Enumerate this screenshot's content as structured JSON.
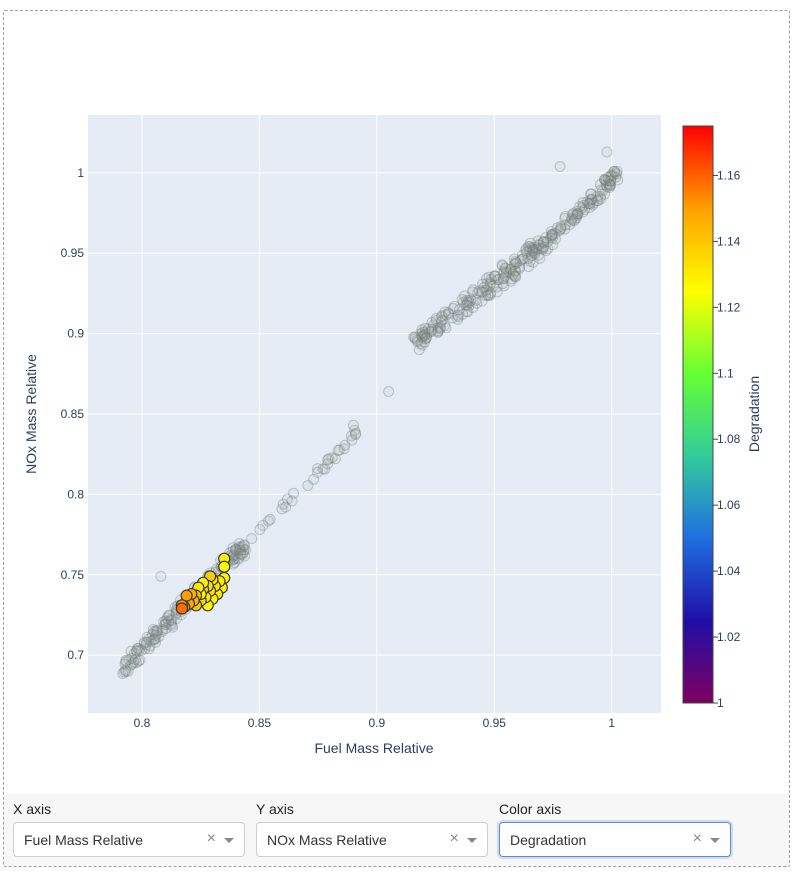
{
  "chart_data": {
    "type": "scatter",
    "xlabel": "Fuel Mass Relative",
    "ylabel": "NOx Mass Relative",
    "xlim": [
      0.777,
      1.021
    ],
    "ylim": [
      0.664,
      1.036
    ],
    "xticks": [
      0.8,
      0.85,
      0.9,
      0.95,
      1
    ],
    "xtick_labels": [
      "0.8",
      "0.85",
      "0.9",
      "0.95",
      "1"
    ],
    "yticks": [
      0.7,
      0.75,
      0.8,
      0.85,
      0.9,
      0.95,
      1
    ],
    "ytick_labels": [
      "0.7",
      "0.75",
      "0.8",
      "0.85",
      "0.9",
      "0.95",
      "1"
    ],
    "grid": true,
    "colorbar": {
      "title": "Degradation",
      "range": [
        1.0,
        1.175
      ],
      "ticks": [
        1,
        1.02,
        1.04,
        1.06,
        1.08,
        1.1,
        1.12,
        1.14,
        1.16
      ],
      "tick_labels": [
        "1",
        "1.02",
        "1.04",
        "1.06",
        "1.08",
        "1.1",
        "1.12",
        "1.14",
        "1.16"
      ],
      "colors": [
        "#7f0060",
        "#1e0fa6",
        "#1f6fe0",
        "#33cc99",
        "#66ff33",
        "#ffff00",
        "#ffa000",
        "#ff0000"
      ]
    },
    "background_series": {
      "name": "",
      "style": "faded grey",
      "segments": [
        {
          "x0": 0.792,
          "y0": 0.692,
          "x1": 0.845,
          "y1": 0.77,
          "n": 170,
          "spread": 0.005
        },
        {
          "x0": 0.845,
          "y0": 0.77,
          "x1": 0.892,
          "y1": 0.84,
          "n": 30,
          "spread": 0.003
        },
        {
          "x0": 0.917,
          "y0": 0.895,
          "x1": 0.975,
          "y1": 0.96,
          "n": 180,
          "spread": 0.006
        },
        {
          "x0": 0.975,
          "y0": 0.96,
          "x1": 1.003,
          "y1": 1.0,
          "n": 80,
          "spread": 0.004
        }
      ],
      "extra_points": [
        [
          0.905,
          0.864
        ],
        [
          0.89,
          0.843
        ],
        [
          0.891,
          0.838
        ],
        [
          0.808,
          0.749
        ],
        [
          0.998,
          1.013
        ],
        [
          0.978,
          1.004
        ]
      ]
    },
    "highlight_points": [
      {
        "x": 0.835,
        "y": 0.76,
        "c": 1.128
      },
      {
        "x": 0.835,
        "y": 0.755,
        "c": 1.126
      },
      {
        "x": 0.835,
        "y": 0.748,
        "c": 1.127
      },
      {
        "x": 0.834,
        "y": 0.742,
        "c": 1.128
      },
      {
        "x": 0.833,
        "y": 0.746,
        "c": 1.13
      },
      {
        "x": 0.832,
        "y": 0.738,
        "c": 1.129
      },
      {
        "x": 0.831,
        "y": 0.743,
        "c": 1.131
      },
      {
        "x": 0.83,
        "y": 0.747,
        "c": 1.133
      },
      {
        "x": 0.83,
        "y": 0.735,
        "c": 1.128
      },
      {
        "x": 0.829,
        "y": 0.74,
        "c": 1.134
      },
      {
        "x": 0.829,
        "y": 0.749,
        "c": 1.138
      },
      {
        "x": 0.828,
        "y": 0.743,
        "c": 1.132
      },
      {
        "x": 0.828,
        "y": 0.731,
        "c": 1.127
      },
      {
        "x": 0.827,
        "y": 0.736,
        "c": 1.13
      },
      {
        "x": 0.826,
        "y": 0.741,
        "c": 1.135
      },
      {
        "x": 0.826,
        "y": 0.745,
        "c": 1.129
      },
      {
        "x": 0.825,
        "y": 0.734,
        "c": 1.136
      },
      {
        "x": 0.825,
        "y": 0.738,
        "c": 1.128
      },
      {
        "x": 0.824,
        "y": 0.742,
        "c": 1.131
      },
      {
        "x": 0.823,
        "y": 0.731,
        "c": 1.14
      },
      {
        "x": 0.823,
        "y": 0.737,
        "c": 1.142
      },
      {
        "x": 0.822,
        "y": 0.734,
        "c": 1.145
      },
      {
        "x": 0.821,
        "y": 0.738,
        "c": 1.146
      },
      {
        "x": 0.82,
        "y": 0.732,
        "c": 1.148
      },
      {
        "x": 0.819,
        "y": 0.737,
        "c": 1.15
      },
      {
        "x": 0.818,
        "y": 0.73,
        "c": 1.155
      },
      {
        "x": 0.817,
        "y": 0.731,
        "c": 1.152
      },
      {
        "x": 0.817,
        "y": 0.729,
        "c": 1.158
      }
    ]
  },
  "controls": {
    "x_axis": {
      "label": "X axis",
      "value": "Fuel Mass Relative",
      "clear_glyph": "×"
    },
    "y_axis": {
      "label": "Y axis",
      "value": "NOx Mass Relative",
      "clear_glyph": "×"
    },
    "color_axis": {
      "label": "Color axis",
      "value": "Degradation",
      "clear_glyph": "×"
    }
  }
}
